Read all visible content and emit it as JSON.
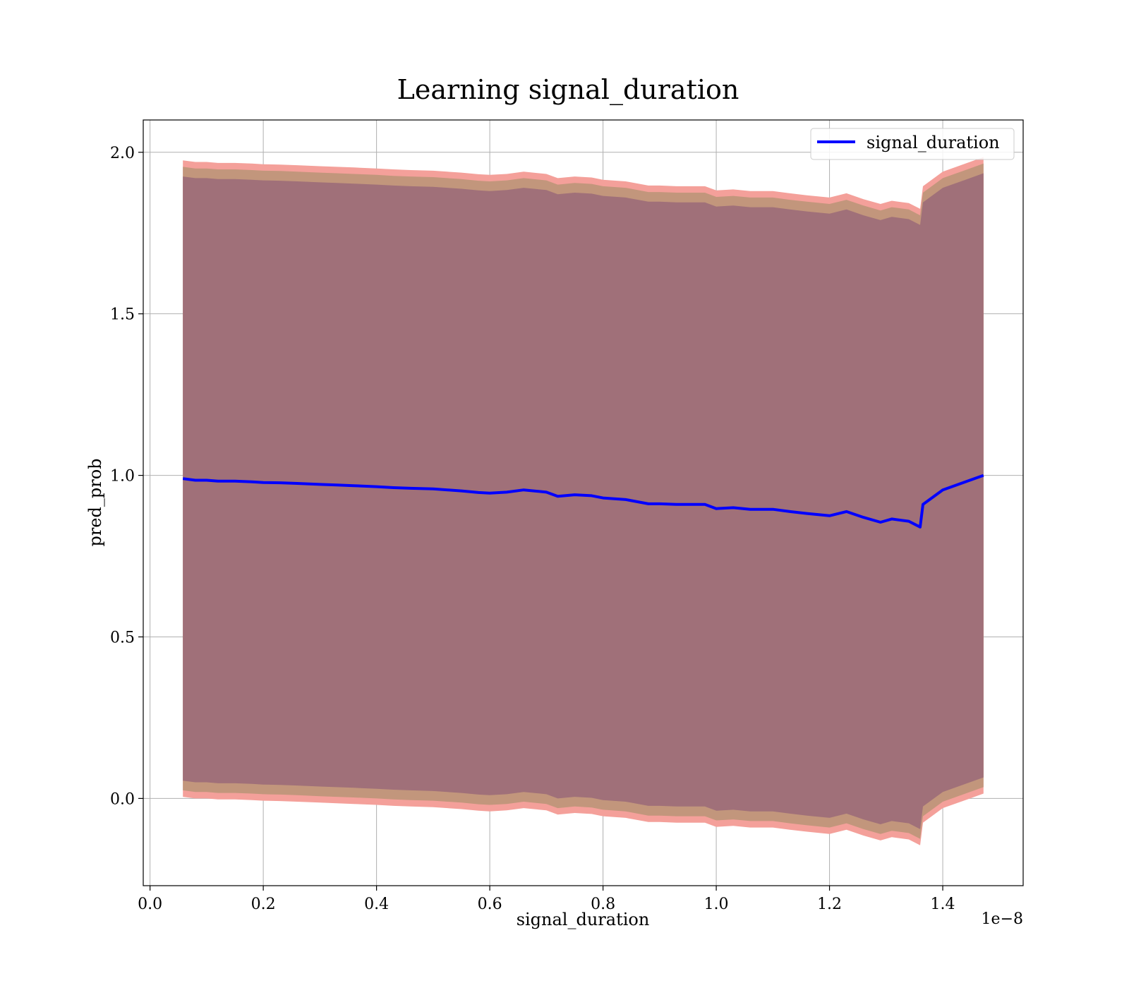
{
  "chart_data": {
    "type": "line",
    "title": "Learning signal_duration",
    "xlabel": "signal_duration",
    "ylabel": "pred_prob",
    "x_offset_label": "1e−8",
    "xlim": [
      -0.012,
      1.542
    ],
    "ylim": [
      -0.27,
      2.1
    ],
    "grid": true,
    "legend_position": "top-right",
    "x_ticks": [
      0.0,
      0.2,
      0.4,
      0.6,
      0.8,
      1.0,
      1.2,
      1.4
    ],
    "x_tick_labels": [
      "0.0",
      "0.2",
      "0.4",
      "0.6",
      "0.8",
      "1.0",
      "1.2",
      "1.4"
    ],
    "y_ticks": [
      0.0,
      0.5,
      1.0,
      1.5,
      2.0
    ],
    "y_tick_labels": [
      "0.0",
      "0.5",
      "1.0",
      "1.5",
      "2.0"
    ],
    "x": [
      0.058,
      0.08,
      0.1,
      0.12,
      0.15,
      0.18,
      0.2,
      0.23,
      0.26,
      0.3,
      0.33,
      0.36,
      0.4,
      0.43,
      0.46,
      0.5,
      0.55,
      0.58,
      0.6,
      0.63,
      0.66,
      0.7,
      0.72,
      0.75,
      0.78,
      0.8,
      0.84,
      0.88,
      0.9,
      0.93,
      0.96,
      0.98,
      1.0,
      1.03,
      1.06,
      1.1,
      1.13,
      1.16,
      1.2,
      1.23,
      1.26,
      1.29,
      1.31,
      1.34,
      1.36,
      1.365,
      1.4,
      1.44,
      1.472
    ],
    "series": [
      {
        "name": "signal_duration",
        "color": "#0000ff",
        "values": [
          0.99,
          0.985,
          0.985,
          0.982,
          0.982,
          0.98,
          0.978,
          0.977,
          0.975,
          0.972,
          0.97,
          0.968,
          0.965,
          0.962,
          0.96,
          0.958,
          0.952,
          0.947,
          0.945,
          0.948,
          0.955,
          0.948,
          0.935,
          0.94,
          0.937,
          0.93,
          0.925,
          0.912,
          0.912,
          0.91,
          0.91,
          0.91,
          0.897,
          0.9,
          0.895,
          0.895,
          0.888,
          0.882,
          0.875,
          0.888,
          0.87,
          0.855,
          0.865,
          0.858,
          0.84,
          0.91,
          0.955,
          0.98,
          1.0
        ]
      }
    ],
    "bands": [
      {
        "name": "band_outer",
        "fill": "#f4a09a",
        "offset": 0.985
      },
      {
        "name": "band_mid",
        "fill": "#c2967c",
        "offset": 0.965
      },
      {
        "name": "band_inner",
        "fill": "#a07079",
        "offset": 0.935
      }
    ]
  }
}
